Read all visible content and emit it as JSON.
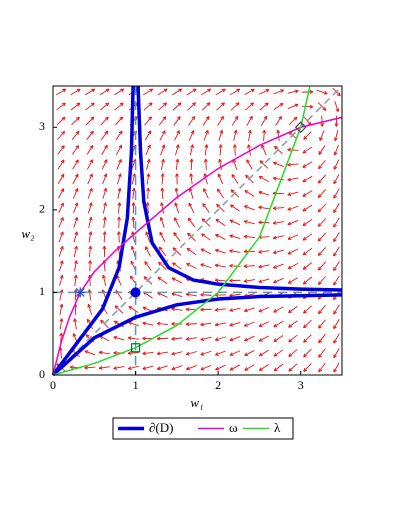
{
  "chart_data": {
    "type": "line",
    "xlabel": "w₁",
    "ylabel": "w₂",
    "xlim": [
      0,
      3.5
    ],
    "ylim": [
      0,
      3.5
    ],
    "xticks": [
      0,
      1,
      2,
      3
    ],
    "yticks": [
      0,
      1,
      2,
      3
    ],
    "series": [
      {
        "name": "∂(D)",
        "color": "#0000dd",
        "width": 3.5,
        "x": [
          0,
          0.3,
          0.6,
          0.8,
          0.9,
          0.95,
          0.97,
          null,
          0,
          0.5,
          1,
          1.5,
          2,
          2.5,
          3,
          3.5,
          null,
          1.03,
          1.06,
          1.1,
          1.2,
          1.4,
          1.7,
          2,
          2.5,
          3,
          3.5
        ],
        "values": [
          0,
          0.4,
          0.8,
          1.3,
          1.9,
          2.7,
          3.5,
          null,
          0,
          0.45,
          0.7,
          0.85,
          0.92,
          0.95,
          0.96,
          0.97,
          null,
          3.5,
          2.7,
          2.1,
          1.6,
          1.3,
          1.15,
          1.1,
          1.06,
          1.04,
          1.03
        ]
      },
      {
        "name": "ω",
        "color": "#ee00cc",
        "width": 1.5,
        "x": [
          0,
          0.1,
          0.2,
          0.33,
          0.5,
          0.75,
          1,
          1.5,
          2,
          2.5,
          3,
          3.5
        ],
        "values": [
          0,
          0.4,
          0.7,
          1,
          1.25,
          1.5,
          1.72,
          2.15,
          2.5,
          2.78,
          3,
          3.12
        ]
      },
      {
        "name": "λ",
        "color": "#22dd22",
        "width": 1.5,
        "x": [
          0,
          0.5,
          1,
          1.5,
          2,
          2.5,
          3,
          3.11
        ],
        "values": [
          0,
          0.14,
          0.33,
          0.6,
          1,
          1.67,
          3,
          3.49
        ]
      }
    ],
    "hlines": [
      1
    ],
    "vlines": [
      1
    ],
    "reference_color": "#5599bb",
    "points": [
      {
        "x": 1,
        "y": 1,
        "marker": "circle"
      },
      {
        "x": 1,
        "y": 0.33,
        "marker": "square"
      },
      {
        "x": 0.33,
        "y": 1,
        "marker": "star"
      },
      {
        "x": 3,
        "y": 3,
        "marker": "diamond"
      }
    ],
    "field_color": "#ee1111"
  }
}
